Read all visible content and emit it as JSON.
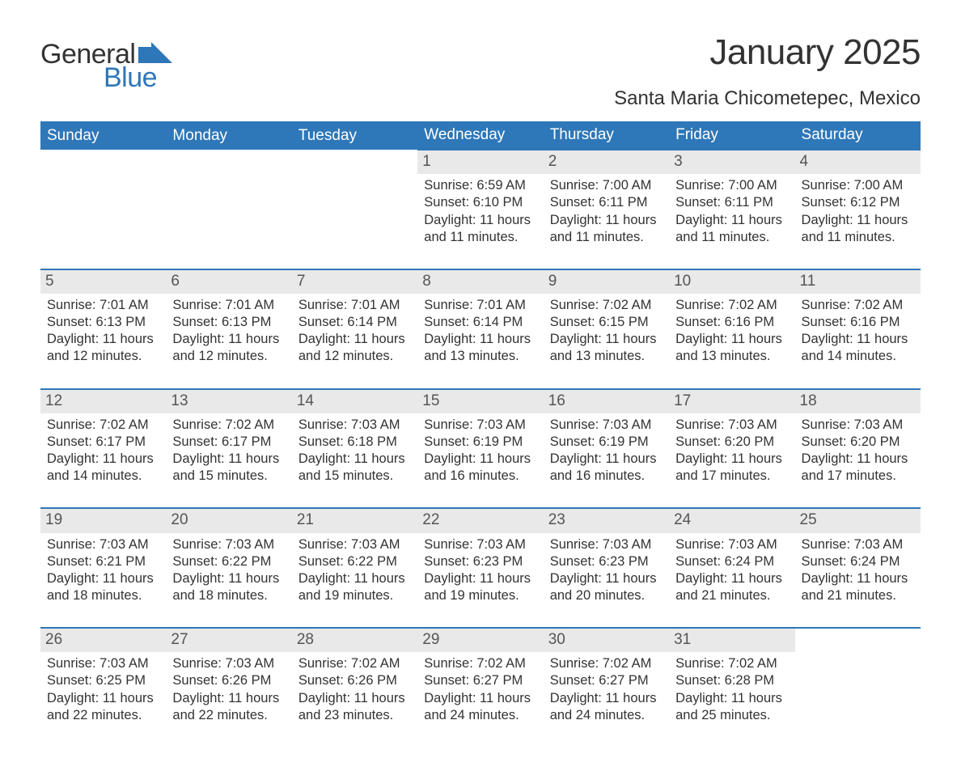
{
  "logo": {
    "text_general": "General",
    "text_blue": "Blue",
    "flag_color": "#2e77b8"
  },
  "header": {
    "month_title": "January 2025",
    "location": "Santa Maria Chicometepec, Mexico"
  },
  "colors": {
    "header_bg": "#2e77b8",
    "header_text": "#ffffff",
    "daynum_bg": "#e9e9e9",
    "daynum_text": "#555555",
    "body_text": "#333333",
    "row_separator": "#2e77b8",
    "page_bg": "#ffffff"
  },
  "calendar": {
    "day_headers": [
      "Sunday",
      "Monday",
      "Tuesday",
      "Wednesday",
      "Thursday",
      "Friday",
      "Saturday"
    ],
    "labels": {
      "sunrise": "Sunrise:",
      "sunset": "Sunset:",
      "daylight_prefix": "Daylight:",
      "hours_word": "hours",
      "and_word": "and",
      "minutes_word": "minutes."
    },
    "weeks": [
      [
        null,
        null,
        null,
        {
          "n": 1,
          "sunrise": "6:59 AM",
          "sunset": "6:10 PM",
          "dl_h": 11,
          "dl_m": 11
        },
        {
          "n": 2,
          "sunrise": "7:00 AM",
          "sunset": "6:11 PM",
          "dl_h": 11,
          "dl_m": 11
        },
        {
          "n": 3,
          "sunrise": "7:00 AM",
          "sunset": "6:11 PM",
          "dl_h": 11,
          "dl_m": 11
        },
        {
          "n": 4,
          "sunrise": "7:00 AM",
          "sunset": "6:12 PM",
          "dl_h": 11,
          "dl_m": 11
        }
      ],
      [
        {
          "n": 5,
          "sunrise": "7:01 AM",
          "sunset": "6:13 PM",
          "dl_h": 11,
          "dl_m": 12
        },
        {
          "n": 6,
          "sunrise": "7:01 AM",
          "sunset": "6:13 PM",
          "dl_h": 11,
          "dl_m": 12
        },
        {
          "n": 7,
          "sunrise": "7:01 AM",
          "sunset": "6:14 PM",
          "dl_h": 11,
          "dl_m": 12
        },
        {
          "n": 8,
          "sunrise": "7:01 AM",
          "sunset": "6:14 PM",
          "dl_h": 11,
          "dl_m": 13
        },
        {
          "n": 9,
          "sunrise": "7:02 AM",
          "sunset": "6:15 PM",
          "dl_h": 11,
          "dl_m": 13
        },
        {
          "n": 10,
          "sunrise": "7:02 AM",
          "sunset": "6:16 PM",
          "dl_h": 11,
          "dl_m": 13
        },
        {
          "n": 11,
          "sunrise": "7:02 AM",
          "sunset": "6:16 PM",
          "dl_h": 11,
          "dl_m": 14
        }
      ],
      [
        {
          "n": 12,
          "sunrise": "7:02 AM",
          "sunset": "6:17 PM",
          "dl_h": 11,
          "dl_m": 14
        },
        {
          "n": 13,
          "sunrise": "7:02 AM",
          "sunset": "6:17 PM",
          "dl_h": 11,
          "dl_m": 15
        },
        {
          "n": 14,
          "sunrise": "7:03 AM",
          "sunset": "6:18 PM",
          "dl_h": 11,
          "dl_m": 15
        },
        {
          "n": 15,
          "sunrise": "7:03 AM",
          "sunset": "6:19 PM",
          "dl_h": 11,
          "dl_m": 16
        },
        {
          "n": 16,
          "sunrise": "7:03 AM",
          "sunset": "6:19 PM",
          "dl_h": 11,
          "dl_m": 16
        },
        {
          "n": 17,
          "sunrise": "7:03 AM",
          "sunset": "6:20 PM",
          "dl_h": 11,
          "dl_m": 17
        },
        {
          "n": 18,
          "sunrise": "7:03 AM",
          "sunset": "6:20 PM",
          "dl_h": 11,
          "dl_m": 17
        }
      ],
      [
        {
          "n": 19,
          "sunrise": "7:03 AM",
          "sunset": "6:21 PM",
          "dl_h": 11,
          "dl_m": 18
        },
        {
          "n": 20,
          "sunrise": "7:03 AM",
          "sunset": "6:22 PM",
          "dl_h": 11,
          "dl_m": 18
        },
        {
          "n": 21,
          "sunrise": "7:03 AM",
          "sunset": "6:22 PM",
          "dl_h": 11,
          "dl_m": 19
        },
        {
          "n": 22,
          "sunrise": "7:03 AM",
          "sunset": "6:23 PM",
          "dl_h": 11,
          "dl_m": 19
        },
        {
          "n": 23,
          "sunrise": "7:03 AM",
          "sunset": "6:23 PM",
          "dl_h": 11,
          "dl_m": 20
        },
        {
          "n": 24,
          "sunrise": "7:03 AM",
          "sunset": "6:24 PM",
          "dl_h": 11,
          "dl_m": 21
        },
        {
          "n": 25,
          "sunrise": "7:03 AM",
          "sunset": "6:24 PM",
          "dl_h": 11,
          "dl_m": 21
        }
      ],
      [
        {
          "n": 26,
          "sunrise": "7:03 AM",
          "sunset": "6:25 PM",
          "dl_h": 11,
          "dl_m": 22
        },
        {
          "n": 27,
          "sunrise": "7:03 AM",
          "sunset": "6:26 PM",
          "dl_h": 11,
          "dl_m": 22
        },
        {
          "n": 28,
          "sunrise": "7:02 AM",
          "sunset": "6:26 PM",
          "dl_h": 11,
          "dl_m": 23
        },
        {
          "n": 29,
          "sunrise": "7:02 AM",
          "sunset": "6:27 PM",
          "dl_h": 11,
          "dl_m": 24
        },
        {
          "n": 30,
          "sunrise": "7:02 AM",
          "sunset": "6:27 PM",
          "dl_h": 11,
          "dl_m": 24
        },
        {
          "n": 31,
          "sunrise": "7:02 AM",
          "sunset": "6:28 PM",
          "dl_h": 11,
          "dl_m": 25
        },
        null
      ]
    ]
  }
}
